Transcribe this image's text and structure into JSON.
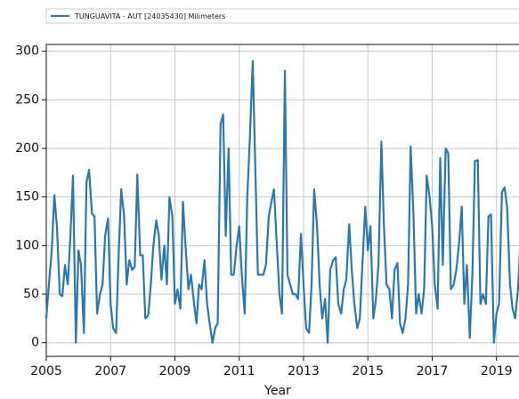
{
  "chart_data": {
    "type": "line",
    "xlabel": "Year",
    "series": [
      {
        "name": "TUNGUAVITA - AUT [24035430] Milimeters",
        "color": "#2a78ad",
        "x": [
          2005.0,
          2005.08,
          2005.17,
          2005.25,
          2005.33,
          2005.42,
          2005.5,
          2005.58,
          2005.67,
          2005.75,
          2005.83,
          2005.92,
          2006.0,
          2006.08,
          2006.17,
          2006.25,
          2006.33,
          2006.42,
          2006.5,
          2006.58,
          2006.67,
          2006.75,
          2006.83,
          2006.92,
          2007.0,
          2007.08,
          2007.17,
          2007.25,
          2007.33,
          2007.42,
          2007.5,
          2007.58,
          2007.67,
          2007.75,
          2007.83,
          2007.92,
          2008.0,
          2008.08,
          2008.17,
          2008.25,
          2008.33,
          2008.42,
          2008.5,
          2008.58,
          2008.67,
          2008.75,
          2008.83,
          2008.92,
          2009.0,
          2009.08,
          2009.17,
          2009.25,
          2009.33,
          2009.42,
          2009.5,
          2009.58,
          2009.67,
          2009.75,
          2009.83,
          2009.92,
          2010.0,
          2010.08,
          2010.17,
          2010.25,
          2010.33,
          2010.42,
          2010.5,
          2010.58,
          2010.67,
          2010.75,
          2010.83,
          2010.92,
          2011.0,
          2011.08,
          2011.17,
          2011.25,
          2011.33,
          2011.42,
          2011.5,
          2011.58,
          2011.67,
          2011.75,
          2011.83,
          2011.92,
          2012.0,
          2012.08,
          2012.17,
          2012.25,
          2012.33,
          2012.42,
          2012.5,
          2012.58,
          2012.67,
          2012.75,
          2012.83,
          2012.92,
          2013.0,
          2013.08,
          2013.17,
          2013.25,
          2013.33,
          2013.42,
          2013.5,
          2013.58,
          2013.67,
          2013.75,
          2013.83,
          2013.92,
          2014.0,
          2014.08,
          2014.17,
          2014.25,
          2014.33,
          2014.42,
          2014.5,
          2014.58,
          2014.67,
          2014.75,
          2014.83,
          2014.92,
          2015.0,
          2015.08,
          2015.17,
          2015.25,
          2015.33,
          2015.42,
          2015.5,
          2015.58,
          2015.67,
          2015.75,
          2015.83,
          2015.92,
          2016.0,
          2016.08,
          2016.17,
          2016.25,
          2016.33,
          2016.42,
          2016.5,
          2016.58,
          2016.67,
          2016.75,
          2016.83,
          2016.92,
          2017.0,
          2017.08,
          2017.17,
          2017.25,
          2017.33,
          2017.42,
          2017.5,
          2017.58,
          2017.67,
          2017.75,
          2017.83,
          2017.92,
          2018.0,
          2018.08,
          2018.17,
          2018.25,
          2018.33,
          2018.42,
          2018.5,
          2018.58,
          2018.67,
          2018.75,
          2018.83,
          2018.92,
          2019.0,
          2019.08,
          2019.17,
          2019.25,
          2019.33,
          2019.42,
          2019.5,
          2019.58,
          2019.67,
          2019.75
        ],
        "values": [
          25,
          60,
          95,
          152,
          120,
          50,
          48,
          80,
          60,
          110,
          172,
          0,
          95,
          80,
          10,
          165,
          178,
          133,
          130,
          30,
          50,
          60,
          110,
          128,
          40,
          15,
          10,
          90,
          158,
          130,
          60,
          85,
          75,
          78,
          173,
          90,
          90,
          25,
          28,
          60,
          100,
          126,
          110,
          65,
          100,
          60,
          150,
          130,
          40,
          55,
          35,
          145,
          100,
          55,
          70,
          45,
          20,
          60,
          55,
          85,
          40,
          20,
          0,
          15,
          20,
          225,
          235,
          110,
          200,
          70,
          70,
          100,
          120,
          70,
          30,
          150,
          210,
          290,
          180,
          70,
          70,
          70,
          80,
          130,
          145,
          158,
          100,
          50,
          30,
          280,
          70,
          60,
          50,
          50,
          45,
          112,
          60,
          15,
          10,
          60,
          158,
          120,
          60,
          25,
          45,
          0,
          75,
          85,
          88,
          40,
          30,
          55,
          65,
          122,
          75,
          40,
          15,
          25,
          80,
          140,
          95,
          120,
          25,
          45,
          80,
          207,
          120,
          60,
          55,
          25,
          75,
          82,
          20,
          10,
          25,
          60,
          202,
          130,
          30,
          50,
          30,
          55,
          172,
          150,
          120,
          60,
          35,
          190,
          80,
          200,
          195,
          55,
          60,
          75,
          100,
          140,
          40,
          80,
          5,
          70,
          187,
          188,
          40,
          50,
          40,
          130,
          132,
          0,
          30,
          40,
          155,
          160,
          140,
          60,
          35,
          25,
          55,
          110
        ]
      }
    ],
    "xlim": [
      2005,
      2019.7
    ],
    "xticks": [
      2005,
      2007,
      2009,
      2011,
      2013,
      2015,
      2017,
      2019
    ],
    "ylim": [
      -14,
      307
    ],
    "yticks": [
      0,
      50,
      100,
      150,
      200,
      250,
      300
    ],
    "grid": true
  }
}
